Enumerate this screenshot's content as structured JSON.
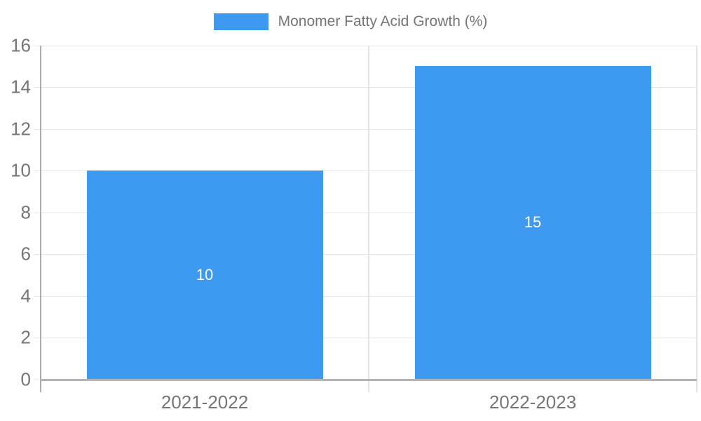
{
  "chart_data": {
    "type": "bar",
    "title": "",
    "legend_label": "Monomer Fatty Acid Growth (%)",
    "legend_position": "top-center",
    "categories": [
      "2021-2022",
      "2022-2023"
    ],
    "series": [
      {
        "name": "Monomer Fatty Acid Growth (%)",
        "values": [
          10,
          15
        ]
      }
    ],
    "data_labels": [
      "10",
      "15"
    ],
    "yticks": [
      0,
      2,
      4,
      6,
      8,
      10,
      12,
      14,
      16
    ],
    "ytick_labels": [
      "0",
      "2",
      "4",
      "6",
      "8",
      "10",
      "12",
      "14",
      "16"
    ],
    "ylim": [
      0,
      16
    ],
    "xlabel": "",
    "ylabel": "",
    "grid": true,
    "colors": {
      "bar": "#3d9af0",
      "axis_line": "#adadad",
      "baseline": "#b3b3b3",
      "gridline": "#e6e6e6",
      "tick_label": "#757575",
      "bar_label": "#ffffff",
      "background": "#ffffff"
    }
  }
}
